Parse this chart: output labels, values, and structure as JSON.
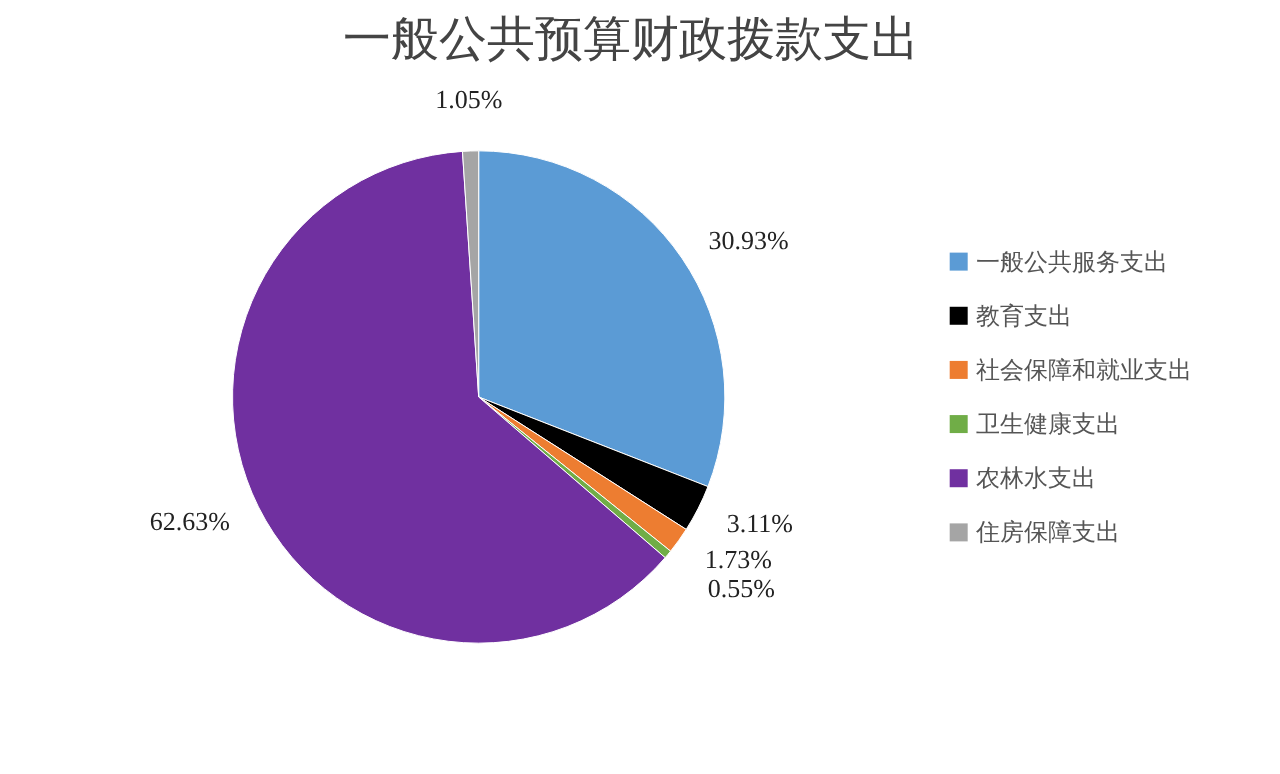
{
  "chart_data": {
    "type": "pie",
    "title": "一般公共预算财政拨款支出",
    "categories": [
      "一般公共服务支出",
      "教育支出",
      "社会保障和就业支出",
      "卫生健康支出",
      "农林水支出",
      "住房保障支出"
    ],
    "values": [
      30.93,
      3.11,
      1.73,
      0.55,
      62.63,
      1.05
    ],
    "value_labels": [
      "30.93%",
      "3.11%",
      "1.73%",
      "0.55%",
      "62.63%",
      "1.05%"
    ],
    "colors": [
      "#5b9bd5",
      "#000000",
      "#ed7d31",
      "#70ad47",
      "#7030a0",
      "#a5a5a5"
    ],
    "legend": "right"
  }
}
